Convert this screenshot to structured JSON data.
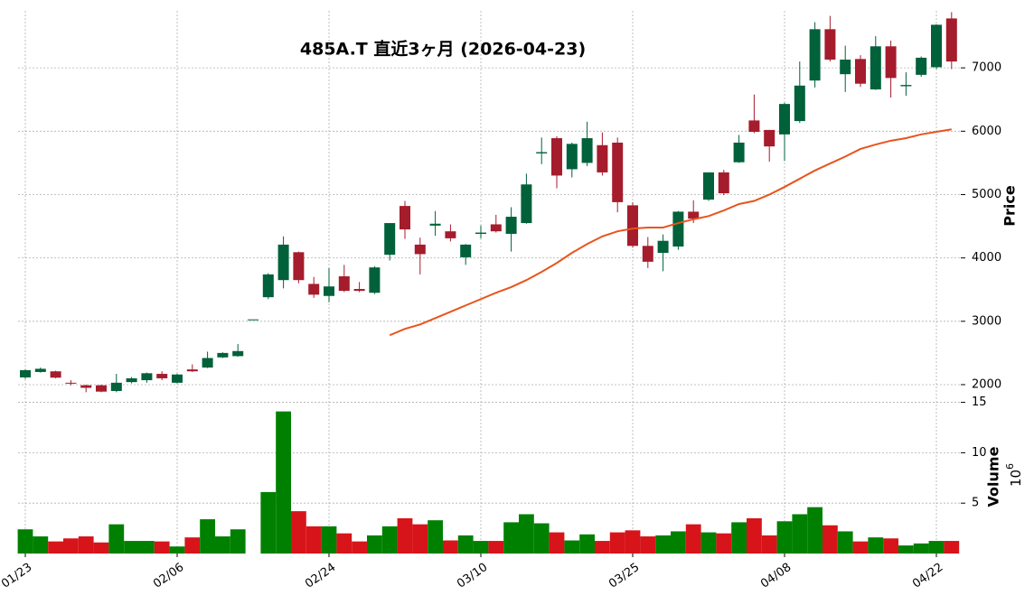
{
  "chart_data": {
    "type": "candlestick",
    "title": "485A.T 直近3ヶ月 (2026-04-23)",
    "categories": [
      "01/23",
      null,
      null,
      null,
      null,
      null,
      null,
      null,
      null,
      null,
      "02/06",
      null,
      null,
      null,
      null,
      null,
      null,
      null,
      null,
      null,
      "02/24",
      null,
      null,
      null,
      null,
      null,
      null,
      null,
      null,
      null,
      "03/10",
      null,
      null,
      null,
      null,
      null,
      null,
      null,
      null,
      null,
      "03/25",
      null,
      null,
      null,
      null,
      null,
      null,
      null,
      null,
      null,
      "04/08",
      null,
      null,
      null,
      null,
      null,
      null,
      null,
      null,
      null,
      "04/22",
      null
    ],
    "open": [
      2114,
      2200,
      2210,
      2030,
      1990,
      1990,
      1900,
      2040,
      2070,
      2170,
      2030,
      2240,
      2270,
      2430,
      2450,
      3030,
      3380,
      3650,
      4090,
      3590,
      3400,
      3710,
      3510,
      3450,
      4050,
      4820,
      4210,
      4510,
      4420,
      4010,
      4380,
      4530,
      4380,
      4550,
      5650,
      5890,
      5400,
      5500,
      5780,
      5820,
      4830,
      4190,
      4080,
      4180,
      4730,
      4920,
      5350,
      5510,
      6170,
      6020,
      5950,
      6160,
      6800,
      7610,
      6900,
      7140,
      6660,
      7340,
      6710,
      6890,
      7010,
      7780
    ],
    "high": [
      2240,
      2270,
      2220,
      2070,
      2000,
      2000,
      2170,
      2120,
      2190,
      2210,
      2170,
      2320,
      2520,
      2510,
      2640,
      3030,
      3760,
      4340,
      4100,
      3700,
      3840,
      3890,
      3620,
      3870,
      4550,
      4900,
      4320,
      4740,
      4530,
      4220,
      4510,
      4680,
      4800,
      5330,
      5900,
      5920,
      5820,
      6150,
      5980,
      5900,
      4880,
      4330,
      4370,
      4740,
      4910,
      5350,
      5390,
      5940,
      6580,
      6020,
      6450,
      7100,
      7720,
      7820,
      7350,
      7200,
      7500,
      7430,
      6930,
      7180,
      7690,
      7880
    ],
    "low": [
      2090,
      2190,
      2100,
      1990,
      1880,
      1880,
      1880,
      2020,
      2030,
      2070,
      2020,
      2200,
      2260,
      2420,
      2440,
      3030,
      3350,
      3520,
      3600,
      3370,
      3300,
      3460,
      3460,
      3430,
      3960,
      4300,
      3740,
      4350,
      4260,
      3890,
      4310,
      4400,
      4100,
      4540,
      5480,
      5100,
      5270,
      5450,
      5300,
      4720,
      4160,
      3840,
      3790,
      4130,
      4550,
      4900,
      4990,
      5500,
      5970,
      5520,
      5530,
      6130,
      6690,
      7100,
      6620,
      6700,
      6650,
      6530,
      6560,
      6860,
      6980,
      6980
    ],
    "close": [
      2228,
      2250,
      2110,
      2020,
      1950,
      1890,
      2030,
      2100,
      2180,
      2100,
      2160,
      2210,
      2420,
      2500,
      2530,
      3030,
      3740,
      4210,
      3650,
      3420,
      3550,
      3480,
      3480,
      3850,
      4550,
      4450,
      4060,
      4540,
      4310,
      4210,
      4400,
      4420,
      4650,
      5160,
      5670,
      5300,
      5800,
      5890,
      5350,
      4880,
      4190,
      3940,
      4270,
      4730,
      4620,
      5350,
      5020,
      5820,
      5990,
      5760,
      6430,
      6720,
      7610,
      7130,
      7130,
      6750,
      7340,
      6840,
      6730,
      7160,
      7680,
      7100
    ],
    "up_color": "#00613a",
    "down_color": "#a51c2c",
    "ylim": [
      1800,
      7900
    ],
    "yticks": [
      2000,
      3000,
      4000,
      5000,
      6000,
      7000
    ],
    "ylabel": "Price",
    "grid": true,
    "moving_average": {
      "color": "#e8541c",
      "values": [
        null,
        null,
        null,
        null,
        null,
        null,
        null,
        null,
        null,
        null,
        null,
        null,
        null,
        null,
        null,
        null,
        null,
        null,
        null,
        null,
        null,
        null,
        null,
        null,
        2780,
        2880,
        2950,
        3050,
        3150,
        3250,
        3350,
        3450,
        3540,
        3650,
        3780,
        3920,
        4080,
        4220,
        4340,
        4420,
        4464,
        4480,
        4480,
        4550,
        4610,
        4660,
        4750,
        4850,
        4900,
        5000,
        5120,
        5250,
        5380,
        5490,
        5600,
        5720,
        5790,
        5850,
        5890,
        5950,
        5990,
        6030
      ]
    },
    "volume": {
      "values": [
        2.4,
        1.7,
        1.2,
        1.5,
        1.7,
        1.1,
        2.9,
        1.25,
        1.25,
        1.2,
        0.7,
        1.6,
        3.4,
        1.7,
        2.4,
        0,
        6.1,
        14.1,
        4.2,
        2.7,
        2.7,
        2.0,
        1.2,
        1.8,
        2.7,
        3.5,
        2.9,
        3.3,
        1.3,
        1.8,
        1.25,
        1.25,
        3.1,
        3.9,
        3.0,
        2.1,
        1.3,
        1.9,
        1.25,
        2.1,
        2.3,
        1.7,
        1.8,
        2.2,
        2.9,
        2.1,
        2.0,
        3.1,
        3.5,
        1.8,
        3.2,
        3.9,
        4.6,
        2.8,
        2.2,
        1.2,
        1.6,
        1.5,
        0.8,
        1.0,
        1.25,
        1.25
      ],
      "up_color": "#008000",
      "down_color": "#d7141a",
      "ylim": [
        0,
        15.5
      ],
      "yticks": [
        5,
        10,
        15
      ],
      "ylabel": "Volume",
      "scale": {
        "base": "10",
        "exponent": "6"
      }
    }
  }
}
